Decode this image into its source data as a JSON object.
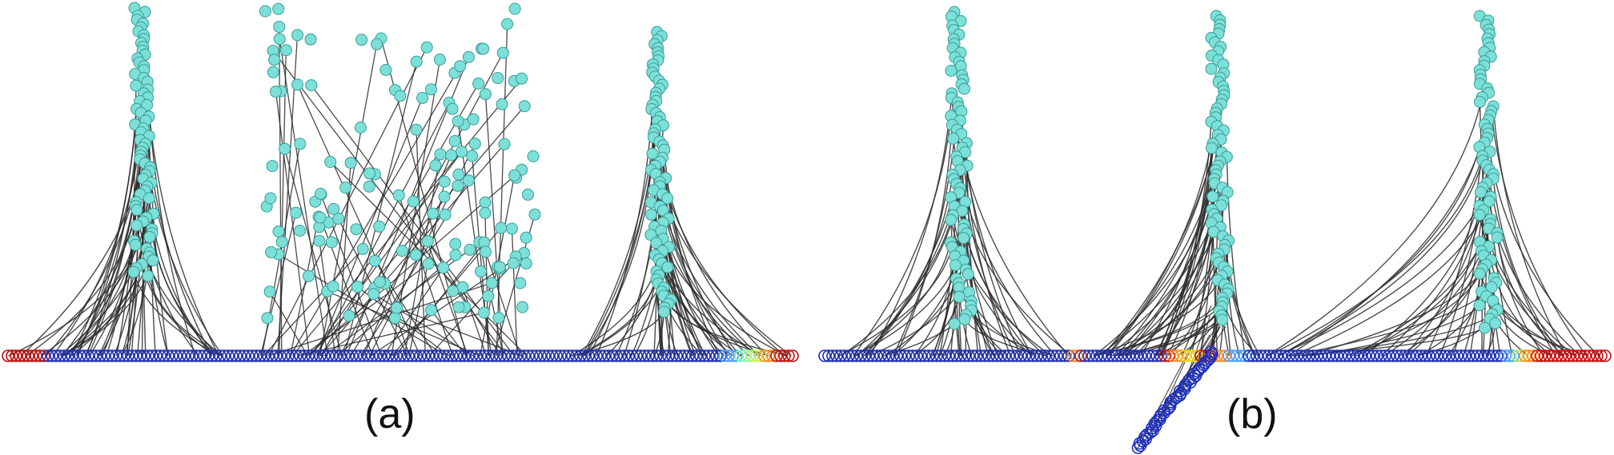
{
  "figure": {
    "panels": [
      {
        "id": "a",
        "label": "(a)",
        "clusters": [
          {
            "kind": "spine",
            "center": 175,
            "range": [
              10,
              345
            ],
            "leaf_span": [
              10,
              300
            ],
            "gradient": [
              [
                10,
                "#b80f0f"
              ],
              [
                55,
                "#b80f0f"
              ],
              [
                60,
                "#1e2fb8"
              ],
              [
                300,
                "#1e2fb8"
              ]
            ]
          },
          {
            "kind": "scatter",
            "region_x": [
              330,
              670
            ],
            "range": [
              10,
              440
            ],
            "leaf_span": [
              320,
              660
            ],
            "gradient": [
              [
                320,
                "#1e2fb8"
              ],
              [
                650,
                "#1e2fb8"
              ]
            ]
          },
          {
            "kind": "spine",
            "center": 820,
            "range": [
              40,
              390
            ],
            "leaf_span": [
              700,
              990
            ],
            "gradient": [
              [
                660,
                "#1e2fb8"
              ],
              [
                880,
                "#1e2fb8"
              ],
              [
                905,
                "#4aa0ff"
              ],
              [
                925,
                "#7dffb0"
              ],
              [
                940,
                "#c8f050"
              ],
              [
                955,
                "#ff8a1e"
              ],
              [
                970,
                "#c81010"
              ],
              [
                990,
                "#b80f0f"
              ]
            ]
          }
        ]
      },
      {
        "id": "b",
        "label": "(b)",
        "clusters": [
          {
            "kind": "spine",
            "center": 1195,
            "range": [
              15,
              405
            ],
            "leaf_span": [
              1030,
              1340
            ],
            "gradient": [
              [
                1030,
                "#1e2fb8"
              ],
              [
                1330,
                "#1e2fb8"
              ],
              [
                1340,
                "#ff8a1e"
              ],
              [
                1350,
                "#c81010"
              ]
            ]
          },
          {
            "kind": "spine",
            "center": 1520,
            "range": [
              20,
              400
            ],
            "leaf_span": [
              1365,
              1580
            ],
            "gradient": [
              [
                1355,
                "#1e2fb8"
              ],
              [
                1440,
                "#1e2fb8"
              ],
              [
                1455,
                "#c81010"
              ],
              [
                1465,
                "#ff8a1e"
              ],
              [
                1480,
                "#e8d020"
              ],
              [
                1500,
                "#c81010"
              ],
              [
                1515,
                "#ff8a1e"
              ],
              [
                1535,
                "#4aa0ff"
              ],
              [
                1560,
                "#1e2fb8"
              ]
            ]
          },
          {
            "kind": "spine",
            "center": 1855,
            "range": [
              20,
              410
            ],
            "leaf_span": [
              1580,
              2005
            ],
            "gradient": [
              [
                1580,
                "#1e2fb8"
              ],
              [
                1870,
                "#1e2fb8"
              ],
              [
                1880,
                "#4aa0ff"
              ],
              [
                1895,
                "#b0e860"
              ],
              [
                1905,
                "#ff8a1e"
              ],
              [
                1920,
                "#c81010"
              ],
              [
                2005,
                "#b80f0f"
              ]
            ]
          }
        ],
        "branch": {
          "from": [
            1515,
            440
          ],
          "to": [
            1420,
            560
          ]
        }
      }
    ],
    "leaf_rows": [
      [
        10,
        990
      ],
      [
        1030,
        2005
      ]
    ],
    "leaf_y": 445,
    "colors": {
      "cluster_node_fill": "#7ce0d8",
      "cluster_node_stroke": "#3a9e98",
      "edge": "#2b2b2b",
      "leaf_blue": "#1e2fb8"
    }
  }
}
